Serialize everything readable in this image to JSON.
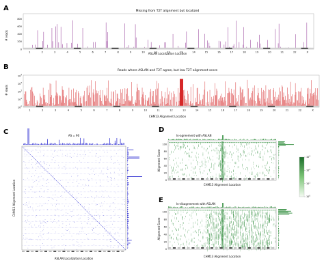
{
  "panel_labels": {
    "a": "A",
    "b": "B",
    "c": "C",
    "d": "D",
    "e": "E"
  },
  "chart_data": [
    {
      "id": "A",
      "type": "bar",
      "title": "Missing from T2T alignment but localized",
      "xlabel": "ASLAN Localization Location",
      "ylabel": "# reads",
      "yticks": [
        "0",
        "200",
        "400",
        "600",
        "800"
      ],
      "ylim": [
        0,
        900
      ],
      "chromosomes": [
        "1",
        "2",
        "3",
        "4",
        "5",
        "6",
        "7",
        "8",
        "9",
        "10",
        "11",
        "12",
        "13",
        "14",
        "15",
        "16",
        "17",
        "18",
        "19",
        "20",
        "21",
        "22",
        "X"
      ],
      "colors": {
        "bars": "#8a2a8e"
      }
    },
    {
      "id": "B",
      "type": "bar",
      "title": "Reads where ASLAN and T2T agree, but low T2T alignment score",
      "xlabel": "CHM13 Alignment Location",
      "ylabel": "# reads",
      "yscale": "log",
      "yticks": [
        "10^0",
        "10^1",
        "10^2",
        "10^3",
        "10^4"
      ],
      "ylim": [
        1,
        10000
      ],
      "chromosomes": [
        "1",
        "2",
        "3",
        "4",
        "5",
        "6",
        "7",
        "8",
        "9",
        "10",
        "11",
        "12",
        "13",
        "14",
        "15",
        "16",
        "17",
        "18",
        "19",
        "20",
        "21",
        "22",
        "X"
      ],
      "colors": {
        "bars": "#d62728"
      }
    },
    {
      "id": "C",
      "type": "scatter",
      "annotation": "AS = 90",
      "xlabel": "ASLAN Localization Location",
      "ylabel": "CHM13 Alignment Location",
      "colors": {
        "points": "#3a3ad4"
      }
    },
    {
      "id": "D",
      "type": "heatmap",
      "title": "In-agreement with ASLAN",
      "xlabel": "CHM13 Alignment Location",
      "ylabel": "Alignment Score",
      "yticks": [
        "0",
        "20",
        "40",
        "60",
        "80",
        "100"
      ],
      "ylim": [
        0,
        110
      ],
      "colorbar_ticks": [
        "10^0",
        "10^1",
        "10^2",
        "10^3"
      ],
      "colors": {
        "cells": "#2e8b3a"
      }
    },
    {
      "id": "E",
      "type": "heatmap",
      "title": "In-disagreement with ASLAN",
      "xlabel": "CHM13 Alignment Location",
      "ylabel": "Alignment Score",
      "yticks": [
        "0",
        "20",
        "40",
        "60",
        "80",
        "100"
      ],
      "ylim": [
        0,
        110
      ],
      "colors": {
        "cells": "#2e8b3a"
      }
    }
  ]
}
